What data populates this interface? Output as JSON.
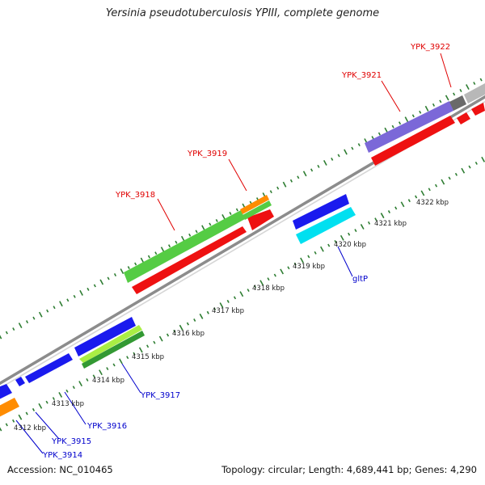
{
  "title": "Yersinia pseudotuberculosis YPIII, complete genome",
  "footer": {
    "accession": "Accession: NC_010465",
    "topology": "Topology: circular; Length: 4,689,441 bp; Genes: 4,290"
  },
  "colors": {
    "background": "#ffffff",
    "backbone": "#8c8c8c",
    "tick": "#2e7d32",
    "cds": "#ee1111",
    "gene_green": "#55cc44",
    "gene_blue": "#1a1aee",
    "gene_orange": "#ff8c00",
    "gene_cyan": "#00e0f0",
    "gene_purple": "#7b68d8",
    "gene_gray": "#b8b8b8",
    "gene_darkgray": "#6a6a6a",
    "gene_lime": "#aaee44",
    "gene_darkgreen": "#339933",
    "label_forward": "#e00000",
    "label_reverse": "#0000cc",
    "scale_label": "#222222"
  },
  "scale_labels": [
    "4312 kbp",
    "4313 kbp",
    "4314 kbp",
    "4315 kbp",
    "4316 kbp",
    "4317 kbp",
    "4318 kbp",
    "4319 kbp",
    "4320 kbp",
    "4321 kbp",
    "4322 kbp"
  ],
  "genes_forward": [
    "YPK_3918",
    "YPK_3919",
    "YPK_3921",
    "YPK_3922"
  ],
  "genes_reverse": [
    "YPK_3914",
    "YPK_3915",
    "YPK_3916",
    "YPK_3917",
    "gltP"
  ]
}
